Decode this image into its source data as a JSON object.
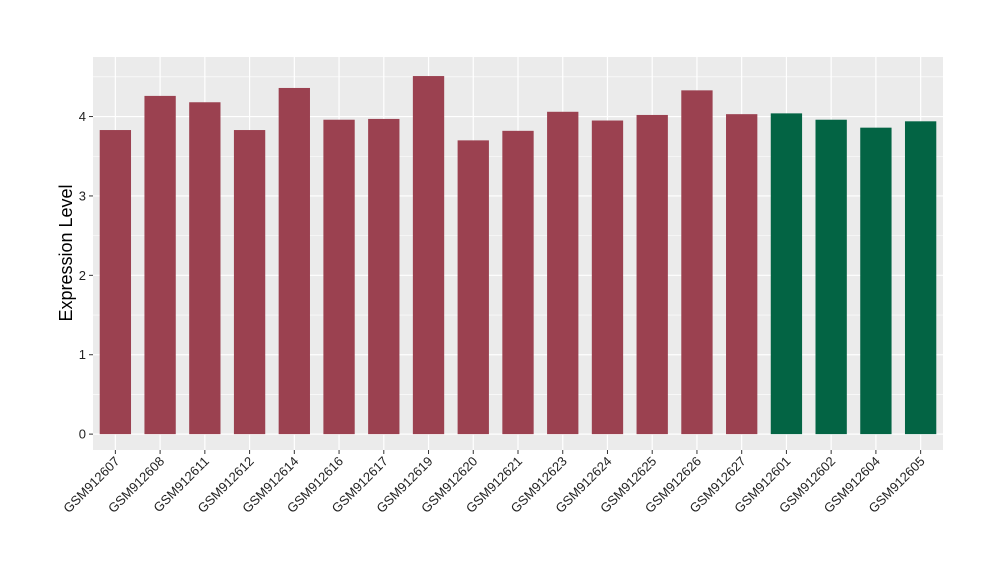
{
  "chart_data": {
    "type": "bar",
    "title": "",
    "xlabel": "",
    "ylabel": "Expression Level",
    "ylim": [
      -0.2,
      4.75
    ],
    "yticks": [
      0,
      1,
      2,
      3,
      4
    ],
    "grid": true,
    "legend": "none",
    "colors": {
      "group1": "#9b4150",
      "group2": "#036444",
      "panel": "#ebebeb",
      "gridline": "#ffffff"
    },
    "categories": [
      "GSM912607",
      "GSM912608",
      "GSM912611",
      "GSM912612",
      "GSM912614",
      "GSM912616",
      "GSM912617",
      "GSM912619",
      "GSM912620",
      "GSM912621",
      "GSM912623",
      "GSM912624",
      "GSM912625",
      "GSM912626",
      "GSM912627",
      "GSM912601",
      "GSM912602",
      "GSM912604",
      "GSM912605"
    ],
    "values": [
      3.83,
      4.26,
      4.18,
      3.83,
      4.36,
      3.96,
      3.97,
      4.51,
      3.7,
      3.82,
      4.06,
      3.95,
      4.02,
      4.33,
      4.03,
      4.04,
      3.96,
      3.86,
      3.94
    ],
    "groups": [
      1,
      1,
      1,
      1,
      1,
      1,
      1,
      1,
      1,
      1,
      1,
      1,
      1,
      1,
      1,
      2,
      2,
      2,
      2
    ]
  }
}
